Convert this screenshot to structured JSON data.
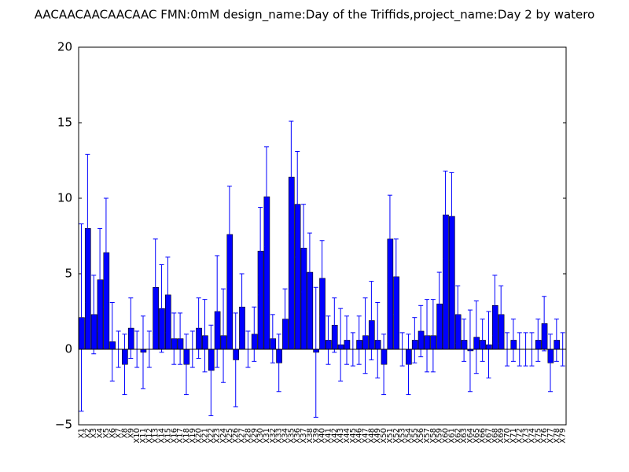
{
  "chart_data": {
    "type": "bar",
    "title": "AACAACAACAACAAC  FMN:0mM  design_name:Day of the Triffids,project_name:Day 2 by watero",
    "categories": [
      "X1",
      "X2",
      "X3",
      "X4",
      "X5",
      "X6",
      "X7",
      "X8",
      "X9",
      "X10",
      "X11",
      "X12",
      "X13",
      "X14",
      "X15",
      "X16",
      "X17",
      "X18",
      "X19",
      "X20",
      "X21",
      "X22",
      "X23",
      "X24",
      "X25",
      "X26",
      "X27",
      "X28",
      "X29",
      "X30",
      "X31",
      "X32",
      "X33",
      "X34",
      "X35",
      "X36",
      "X37",
      "X38",
      "X39",
      "X40",
      "X41",
      "X42",
      "X43",
      "X44",
      "X45",
      "X46",
      "X47",
      "X48",
      "X49",
      "X50",
      "X51",
      "X52",
      "X53",
      "X54",
      "X55",
      "X56",
      "X57",
      "X58",
      "X59",
      "X60",
      "X61",
      "X62",
      "X63",
      "X64",
      "X65",
      "X66",
      "X67",
      "X68",
      "X69",
      "X70",
      "X71",
      "X72",
      "X73",
      "X74",
      "X75",
      "X76",
      "X77",
      "X78",
      "X79"
    ],
    "values": [
      2.1,
      8.0,
      2.3,
      4.6,
      6.4,
      0.5,
      0,
      -1.0,
      1.4,
      0,
      -0.2,
      0,
      4.1,
      2.7,
      3.6,
      0.7,
      0.7,
      -1.0,
      0,
      1.4,
      0.9,
      -1.4,
      2.5,
      0.9,
      7.6,
      -0.7,
      2.8,
      0,
      1.0,
      6.5,
      10.1,
      0.7,
      -0.9,
      2.0,
      11.4,
      9.6,
      6.7,
      5.1,
      -0.2,
      4.7,
      0.6,
      1.6,
      0.3,
      0.6,
      0,
      0.6,
      0.9,
      1.9,
      0.6,
      -1.0,
      7.3,
      4.8,
      0,
      -1.0,
      0.6,
      1.2,
      0.9,
      0.9,
      3.0,
      8.9,
      8.8,
      2.3,
      0.6,
      -0.1,
      0.8,
      0.6,
      0.3,
      2.9,
      2.3,
      0,
      0.6,
      0,
      0,
      0,
      0.6,
      1.7,
      -0.9,
      0.6,
      0
    ],
    "errors": [
      6.2,
      4.9,
      2.6,
      3.4,
      3.6,
      2.6,
      1.2,
      2.0,
      2.0,
      1.2,
      2.4,
      1.2,
      3.2,
      2.9,
      2.5,
      1.7,
      1.7,
      2.0,
      1.2,
      2.0,
      2.4,
      3.0,
      3.7,
      3.1,
      3.2,
      3.1,
      2.2,
      1.2,
      1.8,
      2.9,
      3.3,
      1.6,
      1.9,
      2.0,
      3.7,
      3.5,
      2.9,
      2.6,
      4.3,
      2.5,
      1.6,
      1.8,
      2.4,
      1.6,
      1.1,
      1.6,
      2.5,
      2.6,
      2.5,
      2.0,
      2.9,
      2.5,
      1.1,
      2.0,
      1.5,
      1.7,
      2.4,
      2.4,
      2.1,
      2.9,
      2.9,
      1.9,
      1.4,
      2.7,
      2.4,
      1.4,
      2.2,
      2.0,
      1.9,
      1.1,
      1.4,
      1.1,
      1.1,
      1.1,
      1.4,
      1.8,
      1.9,
      1.4,
      1.1
    ],
    "color": "#0000ff",
    "ylim": [
      -5,
      20
    ],
    "yticks": [
      {
        "value": -5,
        "label": "−5"
      },
      0,
      5,
      10,
      15,
      20
    ]
  }
}
